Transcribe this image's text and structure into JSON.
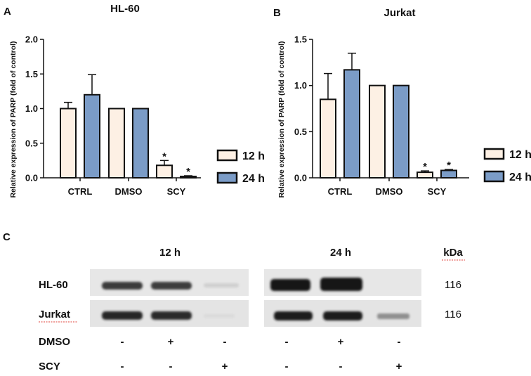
{
  "panels": {
    "a": "A",
    "b": "B",
    "c": "C"
  },
  "chart_data": [
    {
      "type": "bar",
      "title": "HL-60",
      "ylabel": "Relative expression of PARP (fold of control)",
      "xlabel": "",
      "categories": [
        "CTRL",
        "DMSO",
        "SCY"
      ],
      "ylim": [
        0,
        2.0
      ],
      "yticks": [
        "0.0",
        "0.5",
        "1.0",
        "1.5",
        "2.0"
      ],
      "series": [
        {
          "name": "12 h",
          "color": "#fdf0e4",
          "values": [
            1.0,
            1.0,
            0.18
          ],
          "errors": [
            0.09,
            0,
            0.07
          ],
          "significance": [
            "",
            "",
            "*"
          ]
        },
        {
          "name": "24 h",
          "color": "#7b9cc7",
          "values": [
            1.2,
            1.0,
            0.02
          ],
          "errors": [
            0.29,
            0,
            0.01
          ],
          "significance": [
            "",
            "",
            "*"
          ]
        }
      ],
      "legend_position": "right"
    },
    {
      "type": "bar",
      "title": "Jurkat",
      "ylabel": "Relative expression of PARP (fold of control)",
      "xlabel": "",
      "categories": [
        "CTRL",
        "DMSO",
        "SCY"
      ],
      "ylim": [
        0,
        1.5
      ],
      "yticks": [
        "0.0",
        "0.5",
        "1.0",
        "1.5"
      ],
      "series": [
        {
          "name": "12 h",
          "color": "#fdf0e4",
          "values": [
            0.85,
            1.0,
            0.06
          ],
          "errors": [
            0.28,
            0,
            0.015
          ],
          "significance": [
            "",
            "",
            "*"
          ]
        },
        {
          "name": "24 h",
          "color": "#7b9cc7",
          "values": [
            1.17,
            1.0,
            0.08
          ],
          "errors": [
            0.18,
            0,
            0.01
          ],
          "significance": [
            "",
            "",
            "*"
          ]
        }
      ],
      "legend_position": "right"
    }
  ],
  "blot": {
    "headers": [
      "12 h",
      "24 h"
    ],
    "kda_label": "kDa",
    "rows": [
      {
        "label": "HL-60",
        "kda": "116"
      },
      {
        "label": "Jurkat",
        "kda": "116"
      }
    ],
    "treatments": [
      {
        "label": "DMSO",
        "signs": [
          "-",
          "+",
          "-",
          "-",
          "+",
          "-"
        ]
      },
      {
        "label": "SCY",
        "signs": [
          "-",
          "-",
          "+",
          "-",
          "-",
          "+"
        ]
      }
    ]
  }
}
